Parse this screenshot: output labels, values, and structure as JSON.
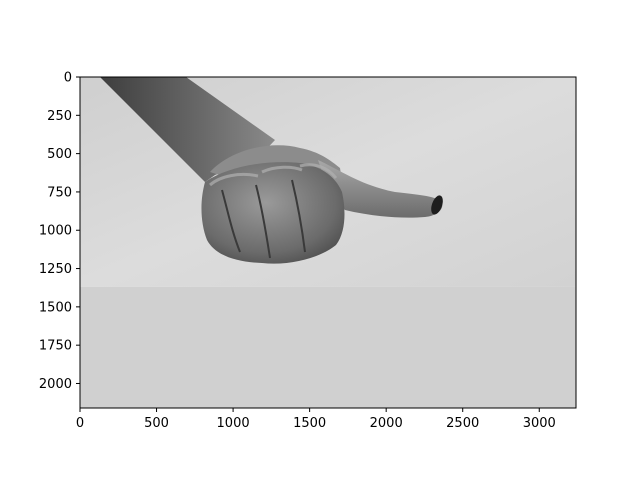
{
  "chart_data": {
    "type": "image",
    "xlim": [
      0,
      3240
    ],
    "ylim": [
      2160,
      0
    ],
    "x_ticks": [
      0,
      500,
      1000,
      1500,
      2000,
      2500,
      3000
    ],
    "y_ticks": [
      0,
      250,
      500,
      750,
      1000,
      1250,
      1500,
      1750,
      2000
    ],
    "image_content": "grayscale photo of a hand giving a thumbs-sideways gesture against a light textured wall",
    "photo_region": {
      "x": [
        0,
        3240
      ],
      "y": [
        0,
        1370
      ]
    },
    "fill_region": {
      "x": [
        0,
        3240
      ],
      "y": [
        1370,
        2160
      ],
      "color": "#d0d0d0"
    },
    "grid": false,
    "title": "",
    "xlabel": "",
    "ylabel": ""
  },
  "colors": {
    "wall": "#d9d9d9",
    "fill": "#d0d0d0",
    "skin_dark": "#5a5a5a",
    "skin_mid": "#7d7d7d",
    "skin_light": "#a5a5a5",
    "axes": "#000000"
  }
}
